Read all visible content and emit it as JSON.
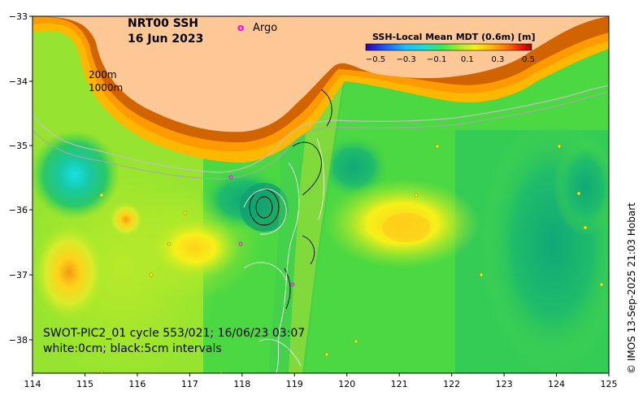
{
  "header": {
    "product": "NRT00 SSH",
    "date": "16 Jun 2023"
  },
  "legend": {
    "argo_symbol": "o",
    "argo_label": "Argo",
    "colorbar_title": "SSH-Local Mean MDT (0.6m) [m]",
    "colorbar_ticks": [
      "−0.5",
      "−0.3",
      "−0.1",
      "0.1",
      "0.3",
      "0.5"
    ],
    "colors": [
      "#2a00b0",
      "#1f5bff",
      "#18c0ff",
      "#18e0c8",
      "#38e85a",
      "#a8ea2a",
      "#f6f01a",
      "#ffb400",
      "#ff6a00",
      "#e41a00",
      "#9a0000"
    ]
  },
  "depth_labels": [
    "200m",
    "1000m"
  ],
  "pass_info": {
    "line1": "SWOT-PIC2_01 cycle 553/021; 16/06/23 03:07",
    "line2": "white:0cm; black:5cm intervals"
  },
  "credit": "© IMOS 13-Sep-2025 21:03 Hobart",
  "axes": {
    "x_ticks": [
      "114",
      "115",
      "116",
      "117",
      "118",
      "119",
      "120",
      "121",
      "122",
      "123",
      "124",
      "125"
    ],
    "y_ticks": [
      "−33",
      "−34",
      "−35",
      "−36",
      "−37",
      "−38"
    ]
  },
  "colors": {
    "land": "#fdc896",
    "shelf_dark": "#d26400",
    "shelf_mid": "#ff9b00",
    "sea_base": "#4cd842",
    "argo_marker": "#ff00ff"
  }
}
